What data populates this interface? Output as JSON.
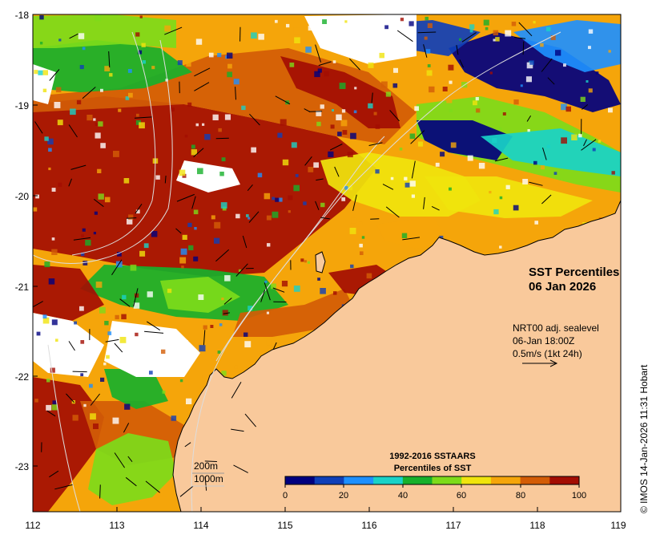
{
  "map": {
    "title_line1": "SST Percentiles",
    "title_line2": "06 Jan 2026",
    "current_info": {
      "line1": "NRT00 adj. sealevel",
      "line2": "06-Jan 18:00Z",
      "line3": "0.5m/s (1kt 24h)"
    },
    "bathymetry": {
      "contour1": "200m",
      "contour2": "1000m"
    },
    "credit": "© IMOS 14-Jan-2026 11:31 Hobart",
    "axes": {
      "lon_ticks": [
        "112",
        "113",
        "114",
        "115",
        "116",
        "117",
        "118",
        "119"
      ],
      "lat_ticks": [
        "-18",
        "-19",
        "-20",
        "-21",
        "-22",
        "-23"
      ]
    },
    "colorbar": {
      "title_line1": "1992-2016 SSTAARS",
      "title_line2": "Percentiles of SST",
      "tick_labels": [
        "0",
        "20",
        "40",
        "60",
        "80",
        "100"
      ],
      "colors": [
        "#00007f",
        "#0f3fb8",
        "#1e90ff",
        "#19d2c8",
        "#17b02b",
        "#7ddb1a",
        "#f0e40d",
        "#f5a50a",
        "#d35c06",
        "#a30d03"
      ]
    },
    "land_color": "#f9c99b",
    "nodata_color": "#ffffff"
  }
}
